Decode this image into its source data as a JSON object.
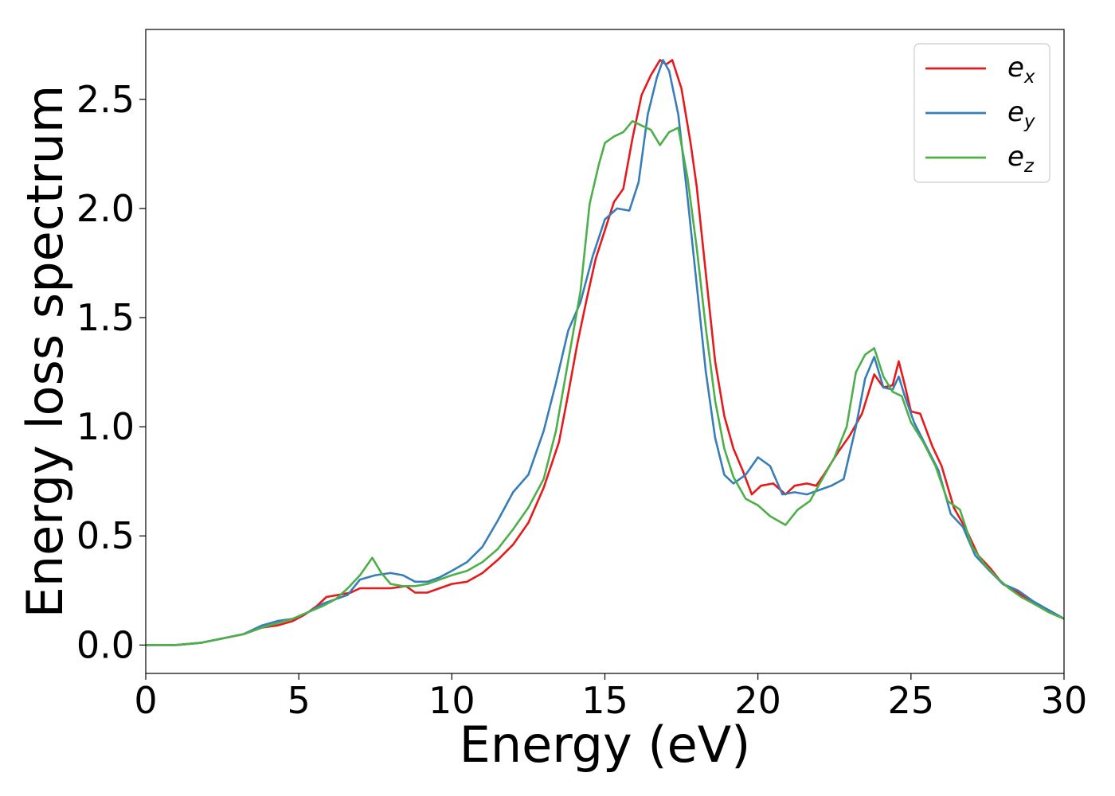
{
  "chart_data": {
    "type": "line",
    "title": "",
    "xlabel": "Energy (eV)",
    "ylabel": "Energy loss spectrum",
    "xlim": [
      0,
      30
    ],
    "ylim": [
      -0.13,
      2.82
    ],
    "xticks": [
      0,
      5,
      10,
      15,
      20,
      25,
      30
    ],
    "xtick_labels": [
      "0",
      "5",
      "10",
      "15",
      "20",
      "25",
      "30"
    ],
    "yticks": [
      0.0,
      0.5,
      1.0,
      1.5,
      2.0,
      2.5
    ],
    "ytick_labels": [
      "0.0",
      "0.5",
      "1.0",
      "1.5",
      "2.0",
      "2.5"
    ],
    "grid": false,
    "legend_position": "top-right",
    "series": [
      {
        "name": "e_x",
        "legend_base": "e",
        "legend_sub": "x",
        "color": "#e41a1c",
        "points": [
          [
            0,
            0
          ],
          [
            1,
            0.0
          ],
          [
            1.8,
            0.01
          ],
          [
            2.5,
            0.03
          ],
          [
            3.2,
            0.05
          ],
          [
            3.8,
            0.08
          ],
          [
            4.3,
            0.09
          ],
          [
            4.8,
            0.11
          ],
          [
            5.2,
            0.14
          ],
          [
            5.6,
            0.18
          ],
          [
            5.9,
            0.22
          ],
          [
            6.3,
            0.23
          ],
          [
            6.7,
            0.24
          ],
          [
            7.0,
            0.26
          ],
          [
            7.5,
            0.26
          ],
          [
            8.0,
            0.26
          ],
          [
            8.5,
            0.27
          ],
          [
            8.8,
            0.24
          ],
          [
            9.2,
            0.24
          ],
          [
            9.6,
            0.26
          ],
          [
            10.0,
            0.28
          ],
          [
            10.5,
            0.29
          ],
          [
            11.0,
            0.33
          ],
          [
            11.5,
            0.39
          ],
          [
            12.0,
            0.46
          ],
          [
            12.5,
            0.56
          ],
          [
            13.0,
            0.72
          ],
          [
            13.5,
            0.93
          ],
          [
            13.8,
            1.15
          ],
          [
            14.1,
            1.38
          ],
          [
            14.4,
            1.58
          ],
          [
            14.7,
            1.77
          ],
          [
            15.0,
            1.9
          ],
          [
            15.3,
            2.03
          ],
          [
            15.6,
            2.09
          ],
          [
            15.9,
            2.32
          ],
          [
            16.2,
            2.52
          ],
          [
            16.5,
            2.61
          ],
          [
            16.8,
            2.68
          ],
          [
            17.0,
            2.66
          ],
          [
            17.2,
            2.68
          ],
          [
            17.5,
            2.55
          ],
          [
            17.8,
            2.3
          ],
          [
            18.0,
            2.1
          ],
          [
            18.3,
            1.7
          ],
          [
            18.6,
            1.3
          ],
          [
            18.9,
            1.05
          ],
          [
            19.2,
            0.9
          ],
          [
            19.5,
            0.8
          ],
          [
            19.8,
            0.69
          ],
          [
            20.1,
            0.73
          ],
          [
            20.5,
            0.74
          ],
          [
            20.9,
            0.69
          ],
          [
            21.2,
            0.73
          ],
          [
            21.6,
            0.74
          ],
          [
            21.9,
            0.73
          ],
          [
            22.2,
            0.79
          ],
          [
            22.6,
            0.88
          ],
          [
            23.0,
            0.96
          ],
          [
            23.4,
            1.06
          ],
          [
            23.8,
            1.24
          ],
          [
            24.1,
            1.18
          ],
          [
            24.4,
            1.19
          ],
          [
            24.6,
            1.3
          ],
          [
            24.8,
            1.19
          ],
          [
            25.0,
            1.07
          ],
          [
            25.3,
            1.06
          ],
          [
            25.7,
            0.91
          ],
          [
            26.0,
            0.82
          ],
          [
            26.4,
            0.63
          ],
          [
            26.8,
            0.53
          ],
          [
            27.2,
            0.41
          ],
          [
            27.6,
            0.35
          ],
          [
            28.0,
            0.28
          ],
          [
            28.5,
            0.24
          ],
          [
            29.0,
            0.19
          ],
          [
            29.5,
            0.16
          ],
          [
            30.0,
            0.12
          ]
        ]
      },
      {
        "name": "e_y",
        "legend_base": "e",
        "legend_sub": "y",
        "color": "#377eb8",
        "points": [
          [
            0,
            0
          ],
          [
            1,
            0.0
          ],
          [
            1.8,
            0.01
          ],
          [
            2.5,
            0.03
          ],
          [
            3.2,
            0.05
          ],
          [
            3.8,
            0.09
          ],
          [
            4.3,
            0.11
          ],
          [
            4.8,
            0.12
          ],
          [
            5.3,
            0.15
          ],
          [
            5.8,
            0.19
          ],
          [
            6.2,
            0.21
          ],
          [
            6.6,
            0.23
          ],
          [
            7.0,
            0.3
          ],
          [
            7.5,
            0.32
          ],
          [
            8.0,
            0.33
          ],
          [
            8.4,
            0.32
          ],
          [
            8.8,
            0.29
          ],
          [
            9.2,
            0.29
          ],
          [
            9.6,
            0.31
          ],
          [
            10.0,
            0.34
          ],
          [
            10.5,
            0.38
          ],
          [
            11.0,
            0.45
          ],
          [
            11.5,
            0.57
          ],
          [
            12.0,
            0.7
          ],
          [
            12.5,
            0.78
          ],
          [
            13.0,
            0.98
          ],
          [
            13.4,
            1.2
          ],
          [
            13.8,
            1.44
          ],
          [
            14.2,
            1.57
          ],
          [
            14.6,
            1.78
          ],
          [
            15.0,
            1.95
          ],
          [
            15.4,
            2.0
          ],
          [
            15.8,
            1.99
          ],
          [
            16.1,
            2.12
          ],
          [
            16.4,
            2.43
          ],
          [
            16.7,
            2.6
          ],
          [
            16.9,
            2.68
          ],
          [
            17.1,
            2.63
          ],
          [
            17.4,
            2.43
          ],
          [
            17.7,
            2.05
          ],
          [
            18.0,
            1.65
          ],
          [
            18.3,
            1.25
          ],
          [
            18.6,
            0.95
          ],
          [
            18.9,
            0.78
          ],
          [
            19.2,
            0.74
          ],
          [
            19.6,
            0.78
          ],
          [
            20.0,
            0.86
          ],
          [
            20.4,
            0.82
          ],
          [
            20.8,
            0.69
          ],
          [
            21.2,
            0.7
          ],
          [
            21.6,
            0.69
          ],
          [
            22.0,
            0.71
          ],
          [
            22.4,
            0.73
          ],
          [
            22.8,
            0.76
          ],
          [
            23.2,
            1.0
          ],
          [
            23.5,
            1.22
          ],
          [
            23.8,
            1.32
          ],
          [
            24.1,
            1.18
          ],
          [
            24.4,
            1.17
          ],
          [
            24.6,
            1.23
          ],
          [
            24.8,
            1.14
          ],
          [
            25.1,
            1.02
          ],
          [
            25.5,
            0.91
          ],
          [
            25.9,
            0.8
          ],
          [
            26.3,
            0.6
          ],
          [
            26.7,
            0.54
          ],
          [
            27.1,
            0.41
          ],
          [
            27.5,
            0.35
          ],
          [
            28.0,
            0.28
          ],
          [
            28.5,
            0.25
          ],
          [
            29.0,
            0.2
          ],
          [
            29.5,
            0.16
          ],
          [
            30.0,
            0.12
          ]
        ]
      },
      {
        "name": "e_z",
        "legend_base": "e",
        "legend_sub": "z",
        "color": "#4daf4a",
        "points": [
          [
            0,
            0
          ],
          [
            1,
            0.0
          ],
          [
            1.8,
            0.01
          ],
          [
            2.5,
            0.03
          ],
          [
            3.2,
            0.05
          ],
          [
            3.8,
            0.08
          ],
          [
            4.3,
            0.1
          ],
          [
            4.8,
            0.12
          ],
          [
            5.3,
            0.15
          ],
          [
            5.8,
            0.18
          ],
          [
            6.2,
            0.21
          ],
          [
            6.6,
            0.26
          ],
          [
            7.0,
            0.32
          ],
          [
            7.4,
            0.4
          ],
          [
            7.7,
            0.33
          ],
          [
            8.0,
            0.28
          ],
          [
            8.4,
            0.27
          ],
          [
            8.8,
            0.27
          ],
          [
            9.2,
            0.28
          ],
          [
            9.6,
            0.3
          ],
          [
            10.0,
            0.32
          ],
          [
            10.5,
            0.34
          ],
          [
            11.0,
            0.38
          ],
          [
            11.5,
            0.44
          ],
          [
            12.0,
            0.53
          ],
          [
            12.5,
            0.63
          ],
          [
            13.0,
            0.76
          ],
          [
            13.4,
            0.98
          ],
          [
            13.8,
            1.3
          ],
          [
            14.2,
            1.62
          ],
          [
            14.5,
            2.02
          ],
          [
            14.8,
            2.2
          ],
          [
            15.0,
            2.3
          ],
          [
            15.3,
            2.33
          ],
          [
            15.6,
            2.35
          ],
          [
            15.9,
            2.4
          ],
          [
            16.2,
            2.38
          ],
          [
            16.5,
            2.36
          ],
          [
            16.8,
            2.29
          ],
          [
            17.1,
            2.35
          ],
          [
            17.4,
            2.37
          ],
          [
            17.7,
            2.14
          ],
          [
            18.0,
            1.82
          ],
          [
            18.3,
            1.45
          ],
          [
            18.6,
            1.12
          ],
          [
            18.9,
            0.9
          ],
          [
            19.2,
            0.77
          ],
          [
            19.6,
            0.67
          ],
          [
            20.0,
            0.64
          ],
          [
            20.4,
            0.59
          ],
          [
            20.9,
            0.55
          ],
          [
            21.3,
            0.62
          ],
          [
            21.7,
            0.66
          ],
          [
            22.1,
            0.76
          ],
          [
            22.5,
            0.86
          ],
          [
            22.9,
            1.0
          ],
          [
            23.2,
            1.25
          ],
          [
            23.5,
            1.33
          ],
          [
            23.8,
            1.36
          ],
          [
            24.1,
            1.23
          ],
          [
            24.4,
            1.16
          ],
          [
            24.7,
            1.14
          ],
          [
            25.0,
            1.02
          ],
          [
            25.4,
            0.93
          ],
          [
            25.8,
            0.82
          ],
          [
            26.2,
            0.66
          ],
          [
            26.6,
            0.62
          ],
          [
            27.0,
            0.45
          ],
          [
            27.4,
            0.37
          ],
          [
            27.8,
            0.31
          ],
          [
            28.2,
            0.26
          ],
          [
            28.6,
            0.22
          ],
          [
            29.0,
            0.19
          ],
          [
            29.5,
            0.15
          ],
          [
            30.0,
            0.12
          ]
        ]
      }
    ]
  }
}
